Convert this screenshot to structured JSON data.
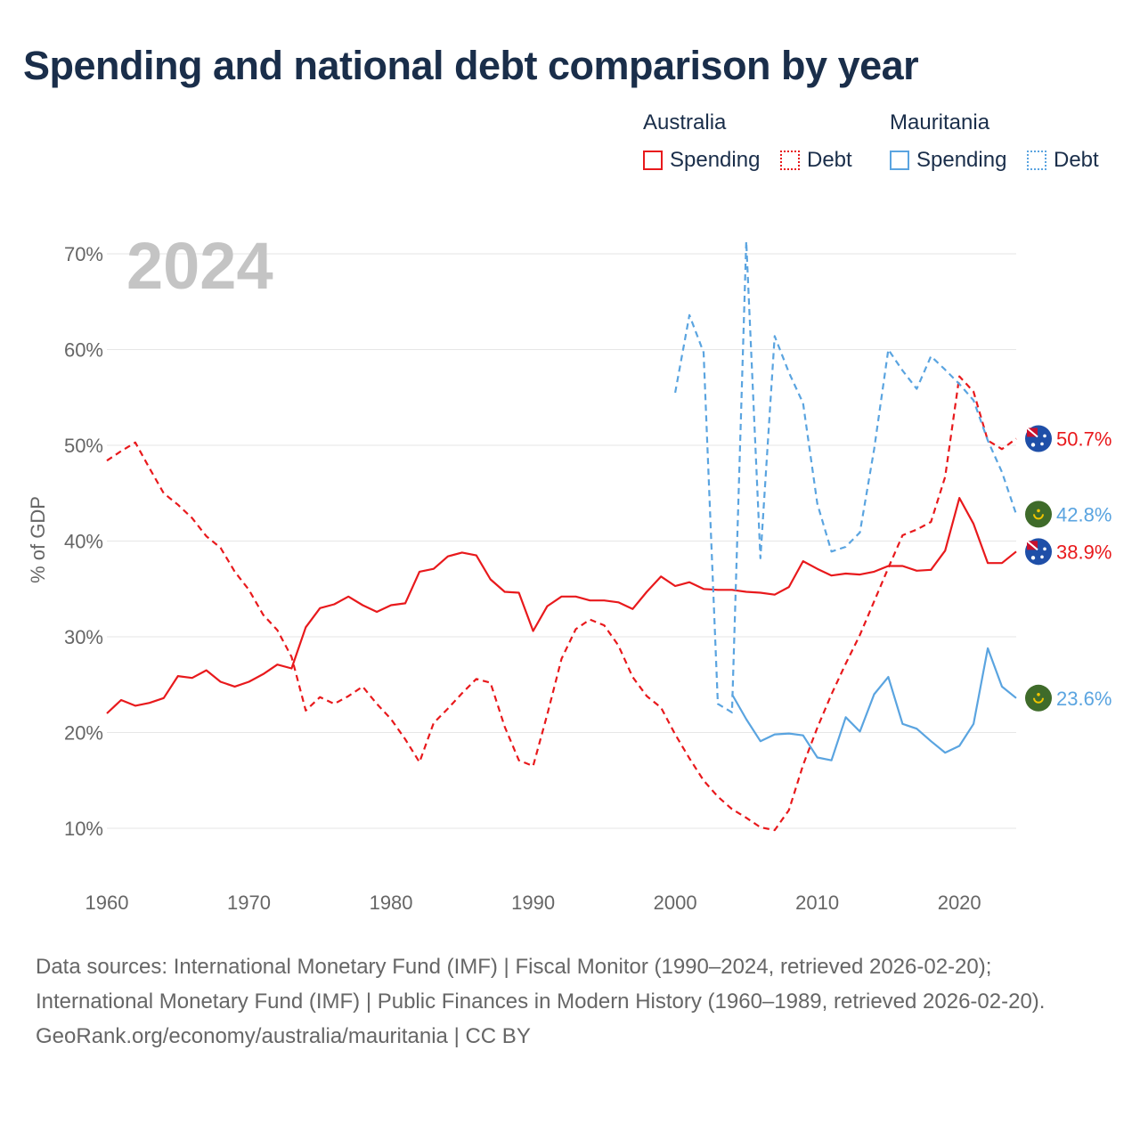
{
  "title": "Spending and national debt comparison by year",
  "legend": {
    "groups": [
      {
        "name": "Australia",
        "color": "#e8191c",
        "items": [
          "Spending",
          "Debt"
        ]
      },
      {
        "name": "Mauritania",
        "color": "#5aa4e0",
        "items": [
          "Spending",
          "Debt"
        ]
      }
    ]
  },
  "footer": {
    "sources": "Data sources: International Monetary Fund (IMF) | Fiscal Monitor (1990–2024, retrieved 2026-02-20); International Monetary Fund (IMF) | Public Finances in Modern History (1960–1989, retrieved 2026-02-20).",
    "credit": "GeoRank.org/economy/australia/mauritania | CC BY"
  },
  "chart_data": {
    "type": "line",
    "year_watermark": "2024",
    "ylabel": "% of GDP",
    "xlabel": "",
    "xlim": [
      1960,
      2024
    ],
    "ylim": [
      5,
      72
    ],
    "x_ticks": [
      1960,
      1970,
      1980,
      1990,
      2000,
      2010,
      2020
    ],
    "y_ticks": [
      10,
      20,
      30,
      40,
      50,
      60,
      70
    ],
    "y_tick_labels": [
      "10%",
      "20%",
      "30%",
      "40%",
      "50%",
      "60%",
      "70%"
    ],
    "grid": true,
    "series": [
      {
        "name": "Australia Spending",
        "country": "Australia",
        "metric": "Spending",
        "color": "#e8191c",
        "dash": "solid",
        "start_year": 1960,
        "end_label": "38.9%",
        "values": [
          22.0,
          23.4,
          22.8,
          23.1,
          23.6,
          25.9,
          25.7,
          26.5,
          25.3,
          24.8,
          25.3,
          26.1,
          27.1,
          26.7,
          31.0,
          33.0,
          33.4,
          34.2,
          33.3,
          32.6,
          33.3,
          33.5,
          36.8,
          37.1,
          38.4,
          38.8,
          38.5,
          36.0,
          34.7,
          34.6,
          30.6,
          33.2,
          34.2,
          34.2,
          33.8,
          33.8,
          33.6,
          32.9,
          34.7,
          36.3,
          35.3,
          35.7,
          35.0,
          34.9,
          34.9,
          34.7,
          34.6,
          34.4,
          35.2,
          37.9,
          37.1,
          36.4,
          36.6,
          36.5,
          36.8,
          37.4,
          37.4,
          36.9,
          37.0,
          39.0,
          44.5,
          41.8,
          37.7,
          37.7,
          38.9
        ]
      },
      {
        "name": "Australia Debt",
        "country": "Australia",
        "metric": "Debt",
        "color": "#e8191c",
        "dash": "dashed",
        "start_year": 1960,
        "end_label": "50.7%",
        "values": [
          48.4,
          49.4,
          50.3,
          47.6,
          45.0,
          43.8,
          42.4,
          40.5,
          39.3,
          36.8,
          34.9,
          32.3,
          30.7,
          27.9,
          22.3,
          23.7,
          23.0,
          23.8,
          24.8,
          23.0,
          21.4,
          19.3,
          16.9,
          21.0,
          22.5,
          24.1,
          25.6,
          25.2,
          20.6,
          17.1,
          16.5,
          21.9,
          27.7,
          30.8,
          31.8,
          31.2,
          29.1,
          25.8,
          23.8,
          22.6,
          19.8,
          17.3,
          15.0,
          13.3,
          12.0,
          11.1,
          10.1,
          9.8,
          11.9,
          16.6,
          20.5,
          24.0,
          27.2,
          30.2,
          33.7,
          37.2,
          40.6,
          41.2,
          42.0,
          46.7,
          57.2,
          55.6,
          50.5,
          49.6,
          50.7
        ]
      },
      {
        "name": "Mauritania Spending",
        "country": "Mauritania",
        "metric": "Spending",
        "color": "#5aa4e0",
        "dash": "solid",
        "start_year": 2004,
        "end_label": "23.6%",
        "values": [
          24.0,
          21.4,
          19.1,
          19.8,
          19.9,
          19.7,
          17.4,
          17.1,
          21.6,
          20.1,
          24.0,
          25.8,
          20.9,
          20.4,
          19.1,
          17.9,
          18.6,
          20.9,
          28.8,
          24.8,
          23.6
        ]
      },
      {
        "name": "Mauritania Debt",
        "country": "Mauritania",
        "metric": "Debt",
        "color": "#5aa4e0",
        "dash": "dashed",
        "start_year": 2000,
        "end_label": "42.8%",
        "values": [
          55.5,
          63.6,
          59.7,
          23.0,
          22.1,
          71.3,
          38.2,
          61.4,
          57.6,
          54.4,
          43.9,
          38.9,
          39.4,
          40.9,
          49.6,
          60.0,
          57.8,
          55.9,
          59.3,
          57.9,
          56.4,
          54.7,
          50.5,
          47.2,
          42.8
        ]
      }
    ]
  }
}
